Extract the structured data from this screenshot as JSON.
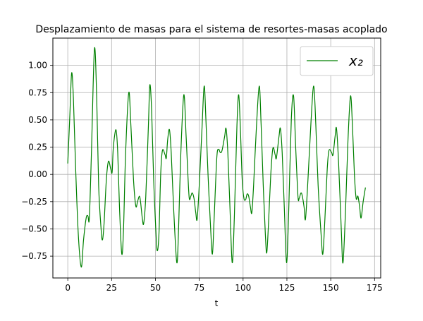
{
  "chart_data": {
    "type": "line",
    "title": "Desplazamiento de masas para el sistema de resortes-masas acoplado",
    "xlabel": "t",
    "ylabel": "",
    "xlim": [
      -8.5,
      178.5
    ],
    "ylim": [
      -0.95,
      1.25
    ],
    "xticks": [
      0,
      25,
      50,
      75,
      100,
      125,
      150,
      175
    ],
    "yticks": [
      -0.75,
      -0.5,
      -0.25,
      0.0,
      0.25,
      0.5,
      0.75,
      1.0
    ],
    "xtick_labels": [
      "0",
      "25",
      "50",
      "75",
      "100",
      "125",
      "150",
      "175"
    ],
    "ytick_labels": [
      "−0.75",
      "−0.50",
      "−0.25",
      "0.00",
      "0.25",
      "0.50",
      "0.75",
      "1.00"
    ],
    "grid": true,
    "legend_position": "top-right",
    "series": [
      {
        "name": "x₂",
        "color": "#008000",
        "points": [
          [
            0,
            0.1
          ],
          [
            1.2,
            0.55
          ],
          [
            2.2,
            0.93
          ],
          [
            3.2,
            0.7
          ],
          [
            4.5,
            0.05
          ],
          [
            6,
            -0.55
          ],
          [
            7.7,
            -0.85
          ],
          [
            9,
            -0.6
          ],
          [
            10.5,
            -0.4
          ],
          [
            11.5,
            -0.38
          ],
          [
            12.3,
            -0.4
          ],
          [
            13.5,
            0.2
          ],
          [
            15.2,
            1.15
          ],
          [
            16.5,
            0.7
          ],
          [
            17.6,
            -0.1
          ],
          [
            19,
            -0.5
          ],
          [
            19.8,
            -0.6
          ],
          [
            20.7,
            -0.45
          ],
          [
            22,
            -0.05
          ],
          [
            23.2,
            0.12
          ],
          [
            24.5,
            0.05
          ],
          [
            25.3,
            0.02
          ],
          [
            26,
            0.25
          ],
          [
            27.5,
            0.41
          ],
          [
            28.5,
            0.2
          ],
          [
            29.5,
            -0.3
          ],
          [
            30.8,
            -0.73
          ],
          [
            31.8,
            -0.5
          ],
          [
            33,
            0.2
          ],
          [
            34.8,
            0.75
          ],
          [
            36,
            0.45
          ],
          [
            37.5,
            -0.05
          ],
          [
            38.8,
            -0.29
          ],
          [
            39.8,
            -0.25
          ],
          [
            40.8,
            -0.2
          ],
          [
            41.5,
            -0.25
          ],
          [
            42.5,
            -0.4
          ],
          [
            43.3,
            -0.45
          ],
          [
            44.5,
            -0.2
          ],
          [
            46,
            0.45
          ],
          [
            46.8,
            0.82
          ],
          [
            47.8,
            0.6
          ],
          [
            49,
            -0.05
          ],
          [
            50.2,
            -0.5
          ],
          [
            51,
            -0.7
          ],
          [
            52,
            -0.55
          ],
          [
            53,
            0.0
          ],
          [
            54,
            0.22
          ],
          [
            55.5,
            0.18
          ],
          [
            56.2,
            0.15
          ],
          [
            57,
            0.32
          ],
          [
            58,
            0.41
          ],
          [
            59,
            0.2
          ],
          [
            60.5,
            -0.35
          ],
          [
            62.2,
            -0.81
          ],
          [
            63.2,
            -0.5
          ],
          [
            64.5,
            0.2
          ],
          [
            66.2,
            0.73
          ],
          [
            67.5,
            0.35
          ],
          [
            68.5,
            0.0
          ],
          [
            69.3,
            -0.22
          ],
          [
            70.2,
            -0.2
          ],
          [
            71,
            -0.17
          ],
          [
            72,
            -0.22
          ],
          [
            73,
            -0.35
          ],
          [
            73.8,
            -0.41
          ],
          [
            75,
            -0.1
          ],
          [
            76.5,
            0.4
          ],
          [
            77.8,
            0.81
          ],
          [
            78.8,
            0.5
          ],
          [
            80,
            0.0
          ],
          [
            81.5,
            -0.5
          ],
          [
            82.5,
            -0.73
          ],
          [
            83.5,
            -0.4
          ],
          [
            85,
            0.15
          ],
          [
            86,
            0.23
          ],
          [
            87,
            0.2
          ],
          [
            88,
            0.22
          ],
          [
            89.5,
            0.35
          ],
          [
            90.3,
            0.42
          ],
          [
            91.3,
            0.2
          ],
          [
            92.5,
            -0.3
          ],
          [
            93.8,
            -0.81
          ],
          [
            95,
            -0.4
          ],
          [
            96.5,
            0.45
          ],
          [
            97.5,
            0.73
          ],
          [
            98.5,
            0.4
          ],
          [
            99.5,
            -0.05
          ],
          [
            100.5,
            -0.22
          ],
          [
            101.5,
            -0.23
          ],
          [
            102.3,
            -0.18
          ],
          [
            103.2,
            -0.2
          ],
          [
            104.2,
            -0.3
          ],
          [
            105,
            -0.35
          ],
          [
            106,
            -0.1
          ],
          [
            107.5,
            0.4
          ],
          [
            109.2,
            0.81
          ],
          [
            110.3,
            0.45
          ],
          [
            111.5,
            -0.1
          ],
          [
            112.7,
            -0.55
          ],
          [
            113.5,
            -0.72
          ],
          [
            114.5,
            -0.45
          ],
          [
            115.8,
            0.0
          ],
          [
            117,
            0.24
          ],
          [
            118.3,
            0.18
          ],
          [
            119,
            0.15
          ],
          [
            120.5,
            0.35
          ],
          [
            121.3,
            0.42
          ],
          [
            122.3,
            0.2
          ],
          [
            123.5,
            -0.3
          ],
          [
            124.8,
            -0.81
          ],
          [
            126,
            -0.35
          ],
          [
            127.5,
            0.5
          ],
          [
            128.8,
            0.72
          ],
          [
            130,
            0.25
          ],
          [
            131.3,
            -0.2
          ],
          [
            132,
            -0.22
          ],
          [
            133,
            -0.17
          ],
          [
            133.8,
            -0.2
          ],
          [
            134.8,
            -0.3
          ],
          [
            135.6,
            -0.41
          ],
          [
            137,
            -0.05
          ],
          [
            138.8,
            0.5
          ],
          [
            140.3,
            0.81
          ],
          [
            141.5,
            0.45
          ],
          [
            142.8,
            -0.1
          ],
          [
            144.5,
            -0.55
          ],
          [
            145.5,
            -0.73
          ],
          [
            146.7,
            -0.4
          ],
          [
            148,
            0.05
          ],
          [
            149,
            0.22
          ],
          [
            150.5,
            0.2
          ],
          [
            151.3,
            0.18
          ],
          [
            152.5,
            0.35
          ],
          [
            153.3,
            0.42
          ],
          [
            154.5,
            0.1
          ],
          [
            156,
            -0.5
          ],
          [
            157,
            -0.81
          ],
          [
            158.5,
            -0.3
          ],
          [
            159.8,
            0.3
          ],
          [
            161.3,
            0.72
          ],
          [
            162.5,
            0.4
          ],
          [
            163.5,
            0.0
          ],
          [
            164.5,
            -0.22
          ],
          [
            165.5,
            -0.2
          ],
          [
            166.5,
            -0.3
          ],
          [
            167.3,
            -0.4
          ],
          [
            168.5,
            -0.25
          ],
          [
            169.8,
            -0.12
          ]
        ]
      }
    ]
  }
}
